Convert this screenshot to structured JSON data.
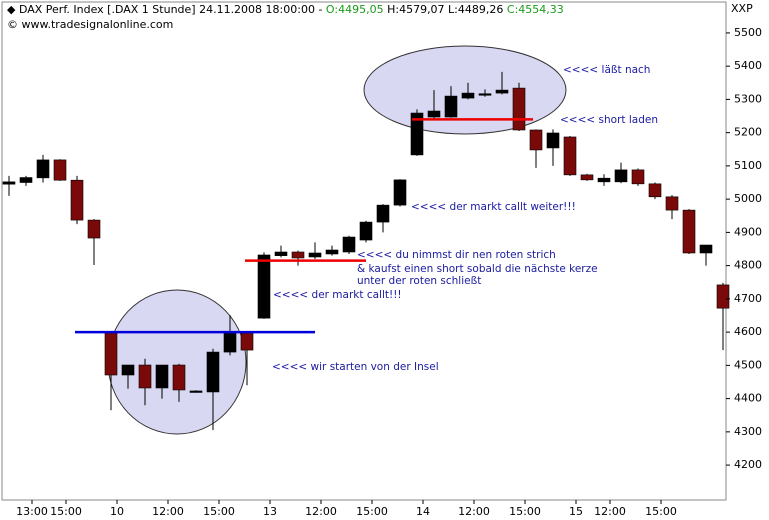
{
  "header": {
    "title": "DAX Perf. Index [.DAX  1 Stunde] 24.11.2008 18:00:00 - ",
    "open": "O:4495,05",
    "highlow": "H:4579,07 L:4489,26",
    "close": "C:4554,33",
    "copyright": "© www.tradesignalonline.com",
    "symbol": "XXP"
  },
  "chart_data": {
    "type": "candlestick",
    "ylim": [
      4095,
      5593
    ],
    "yticks": [
      4200,
      4300,
      4400,
      4500,
      4600,
      4700,
      4800,
      4900,
      5000,
      5100,
      5200,
      5300,
      5400,
      5500
    ],
    "xticks": [
      {
        "value": 1,
        "label": "13:00"
      },
      {
        "value": 3,
        "label": "15:00"
      },
      {
        "value": 6,
        "label": "10"
      },
      {
        "value": 9,
        "label": "12:00"
      },
      {
        "value": 12,
        "label": "15:00"
      },
      {
        "value": 15,
        "label": "13"
      },
      {
        "value": 18,
        "label": "12:00"
      },
      {
        "value": 21,
        "label": "15:00"
      },
      {
        "value": 24,
        "label": "14"
      },
      {
        "value": 27,
        "label": "12:00"
      },
      {
        "value": 30,
        "label": "15:00"
      },
      {
        "value": 33,
        "label": "15"
      },
      {
        "value": 35,
        "label": "12:00"
      },
      {
        "value": 38,
        "label": "15:00"
      }
    ],
    "up_color": "#000000",
    "down_color": "#7a0a0a",
    "candles": [
      {
        "o": 5045,
        "h": 5070,
        "l": 5010,
        "c": 5052
      },
      {
        "o": 5050,
        "h": 5070,
        "l": 5040,
        "c": 5065
      },
      {
        "o": 5064,
        "h": 5133,
        "l": 5050,
        "c": 5118
      },
      {
        "o": 5118,
        "h": 5120,
        "l": 5055,
        "c": 5057
      },
      {
        "o": 5057,
        "h": 5070,
        "l": 4925,
        "c": 4937
      },
      {
        "o": 4937,
        "h": 4940,
        "l": 4802,
        "c": 4883
      },
      {
        "o": 4597,
        "h": 4600,
        "l": 4365,
        "c": 4471
      },
      {
        "o": 4471,
        "h": 4501,
        "l": 4430,
        "c": 4501
      },
      {
        "o": 4501,
        "h": 4520,
        "l": 4380,
        "c": 4432
      },
      {
        "o": 4432,
        "h": 4501,
        "l": 4400,
        "c": 4501
      },
      {
        "o": 4501,
        "h": 4505,
        "l": 4390,
        "c": 4426
      },
      {
        "o": 4420,
        "h": 4425,
        "l": 4418,
        "c": 4423
      },
      {
        "o": 4420,
        "h": 4550,
        "l": 4305,
        "c": 4540
      },
      {
        "o": 4540,
        "h": 4651,
        "l": 4530,
        "c": 4600
      },
      {
        "o": 4597,
        "h": 4600,
        "l": 4440,
        "c": 4546
      },
      {
        "o": 4642,
        "h": 4840,
        "l": 4640,
        "c": 4832
      },
      {
        "o": 4830,
        "h": 4860,
        "l": 4825,
        "c": 4841
      },
      {
        "o": 4841,
        "h": 4845,
        "l": 4800,
        "c": 4823
      },
      {
        "o": 4826,
        "h": 4870,
        "l": 4820,
        "c": 4838
      },
      {
        "o": 4835,
        "h": 4860,
        "l": 4830,
        "c": 4847
      },
      {
        "o": 4841,
        "h": 4890,
        "l": 4835,
        "c": 4886
      },
      {
        "o": 4877,
        "h": 4935,
        "l": 4870,
        "c": 4931
      },
      {
        "o": 4931,
        "h": 4985,
        "l": 4900,
        "c": 4982
      },
      {
        "o": 4982,
        "h": 5060,
        "l": 4978,
        "c": 5058
      },
      {
        "o": 5133,
        "h": 5270,
        "l": 5130,
        "c": 5259
      },
      {
        "o": 5247,
        "h": 5328,
        "l": 5240,
        "c": 5265
      },
      {
        "o": 5247,
        "h": 5340,
        "l": 5245,
        "c": 5310
      },
      {
        "o": 5304,
        "h": 5350,
        "l": 5300,
        "c": 5319
      },
      {
        "o": 5313,
        "h": 5330,
        "l": 5308,
        "c": 5317
      },
      {
        "o": 5319,
        "h": 5383,
        "l": 5315,
        "c": 5328
      },
      {
        "o": 5334,
        "h": 5350,
        "l": 5205,
        "c": 5208
      },
      {
        "o": 5208,
        "h": 5210,
        "l": 5094,
        "c": 5148
      },
      {
        "o": 5154,
        "h": 5210,
        "l": 5100,
        "c": 5199
      },
      {
        "o": 5187,
        "h": 5190,
        "l": 5070,
        "c": 5073
      },
      {
        "o": 5073,
        "h": 5076,
        "l": 5055,
        "c": 5058
      },
      {
        "o": 5052,
        "h": 5075,
        "l": 5040,
        "c": 5063
      },
      {
        "o": 5052,
        "h": 5110,
        "l": 5048,
        "c": 5088
      },
      {
        "o": 5088,
        "h": 5092,
        "l": 5040,
        "c": 5046
      },
      {
        "o": 5046,
        "h": 5050,
        "l": 5000,
        "c": 5007
      },
      {
        "o": 5007,
        "h": 5012,
        "l": 4940,
        "c": 4967
      },
      {
        "o": 4967,
        "h": 4970,
        "l": 4835,
        "c": 4838
      },
      {
        "o": 4838,
        "h": 4862,
        "l": 4800,
        "c": 4862
      },
      {
        "o": 4742,
        "h": 4748,
        "l": 4546,
        "c": 4672
      }
    ],
    "hlines": [
      {
        "value": 4600,
        "color": "#0000dd"
      },
      {
        "value": 4815,
        "color": "#ee0000"
      },
      {
        "value": 5240,
        "color": "#ee0000"
      }
    ],
    "annotations": [
      "<<<<    läßt nach",
      "<<<<    short laden",
      "<<<<        der markt callt weiter!!!",
      "<<<<        du nimmst dir nen roten strich",
      "& kaufst einen short sobald die nächste kerze",
      "unter der roten schließt",
      "<<<<        der markt callt!!!",
      "<<<<        wir starten von der Insel"
    ]
  }
}
